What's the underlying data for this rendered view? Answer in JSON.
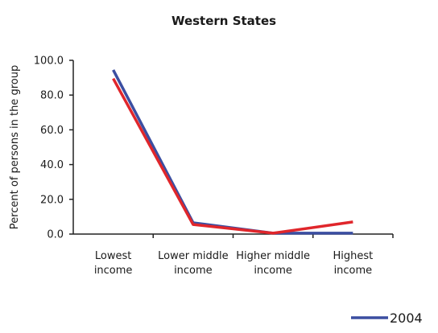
{
  "chart_data": {
    "type": "line",
    "title": "Western States",
    "ylabel": "Percent of persons in the group",
    "xlabel": "",
    "ylim": [
      0,
      100
    ],
    "yticks": [
      "0.0",
      "20.0",
      "40.0",
      "60.0",
      "80.0",
      "100.0"
    ],
    "categories": [
      [
        "Lowest",
        "income"
      ],
      [
        "Lower middle",
        "income"
      ],
      [
        "Higher middle",
        "income"
      ],
      [
        "Highest",
        "income"
      ]
    ],
    "grid": false,
    "legend_position": "bottom-right",
    "series": [
      {
        "name": "2004",
        "color": "#3b4ea1",
        "values": [
          94.5,
          6.5,
          0.5,
          0.5
        ]
      },
      {
        "color": "#e0262b",
        "values": [
          89.5,
          5.5,
          0.5,
          7.0
        ]
      }
    ]
  }
}
